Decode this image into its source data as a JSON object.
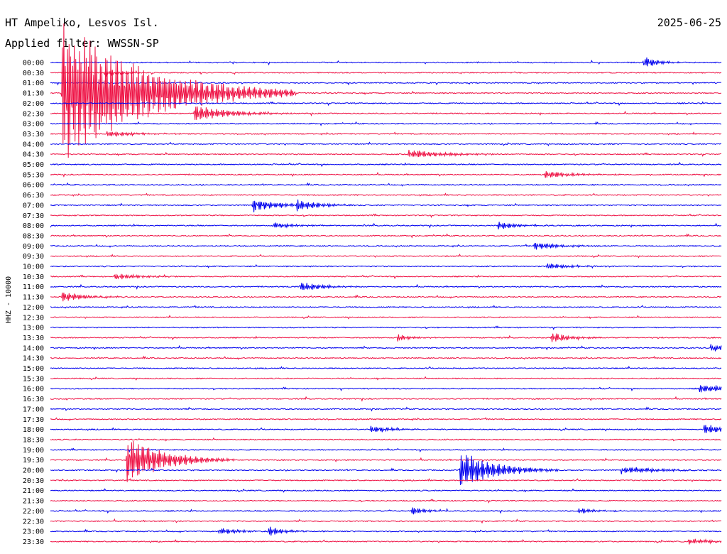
{
  "header": {
    "station": "HT Ampeliko, Lesvos Isl.",
    "date": "2025-06-25",
    "filter": "Applied filter: WWSSN-SP"
  },
  "chart_data": {
    "type": "line",
    "title": "HT Ampeliko, Lesvos Isl.",
    "subtitle": "Applied filter: WWSSN-SP",
    "ylabel": "HHZ - 10000",
    "colors": {
      "odd_hour": "#0000ee",
      "half_hour": "#ee1144"
    },
    "rows": [
      "00:00",
      "00:30",
      "01:00",
      "01:30",
      "02:00",
      "02:30",
      "03:00",
      "03:30",
      "04:00",
      "04:30",
      "05:00",
      "05:30",
      "06:00",
      "06:30",
      "07:00",
      "07:30",
      "08:00",
      "08:30",
      "09:00",
      "09:30",
      "10:00",
      "10:30",
      "11:00",
      "11:30",
      "12:00",
      "12:30",
      "13:00",
      "13:30",
      "14:00",
      "14:30",
      "15:00",
      "15:30",
      "16:00",
      "16:30",
      "17:00",
      "17:30",
      "18:00",
      "18:30",
      "19:00",
      "19:30",
      "20:00",
      "20:30",
      "21:00",
      "21:30",
      "22:00",
      "22:30",
      "23:00",
      "23:30"
    ],
    "events": [
      {
        "row": 0,
        "minute": 26.5,
        "amp": 10,
        "dur": 0.6
      },
      {
        "row": 1,
        "minute": 2.4,
        "amp": 7,
        "dur": 0.6
      },
      {
        "row": 3,
        "minute": 0.5,
        "amp": 110,
        "dur": 3.5
      },
      {
        "row": 5,
        "minute": 6.4,
        "amp": 14,
        "dur": 1.5
      },
      {
        "row": 7,
        "minute": 2.5,
        "amp": 5,
        "dur": 1.2
      },
      {
        "row": 9,
        "minute": 16.0,
        "amp": 7,
        "dur": 1.5
      },
      {
        "row": 11,
        "minute": 22.1,
        "amp": 6,
        "dur": 1.2
      },
      {
        "row": 14,
        "minute": 9.0,
        "amp": 10,
        "dur": 1.2
      },
      {
        "row": 14,
        "minute": 11.0,
        "amp": 8,
        "dur": 1.0
      },
      {
        "row": 16,
        "minute": 9.9,
        "amp": 5,
        "dur": 1.0
      },
      {
        "row": 16,
        "minute": 20.0,
        "amp": 7,
        "dur": 0.8
      },
      {
        "row": 18,
        "minute": 21.6,
        "amp": 6,
        "dur": 1.2
      },
      {
        "row": 20,
        "minute": 22.2,
        "amp": 5,
        "dur": 1.0
      },
      {
        "row": 21,
        "minute": 2.8,
        "amp": 6,
        "dur": 1.0
      },
      {
        "row": 22,
        "minute": 11.1,
        "amp": 8,
        "dur": 1.0
      },
      {
        "row": 23,
        "minute": 0.5,
        "amp": 9,
        "dur": 1.0
      },
      {
        "row": 27,
        "minute": 22.4,
        "amp": 9,
        "dur": 0.8
      },
      {
        "row": 27,
        "minute": 15.5,
        "amp": 6,
        "dur": 0.6
      },
      {
        "row": 28,
        "minute": 29.5,
        "amp": 6,
        "dur": 1.0
      },
      {
        "row": 32,
        "minute": 29.0,
        "amp": 8,
        "dur": 1.2
      },
      {
        "row": 36,
        "minute": 14.3,
        "amp": 6,
        "dur": 1.0
      },
      {
        "row": 36,
        "minute": 29.2,
        "amp": 9,
        "dur": 0.8
      },
      {
        "row": 39,
        "minute": 3.4,
        "amp": 38,
        "dur": 1.6
      },
      {
        "row": 40,
        "minute": 18.3,
        "amp": 30,
        "dur": 1.5
      },
      {
        "row": 40,
        "minute": 25.5,
        "amp": 6,
        "dur": 1.5
      },
      {
        "row": 44,
        "minute": 16.1,
        "amp": 7,
        "dur": 0.6
      },
      {
        "row": 44,
        "minute": 23.6,
        "amp": 5,
        "dur": 0.8
      },
      {
        "row": 46,
        "minute": 7.5,
        "amp": 6,
        "dur": 0.8
      },
      {
        "row": 46,
        "minute": 9.7,
        "amp": 9,
        "dur": 0.6
      },
      {
        "row": 47,
        "minute": 28.5,
        "amp": 5,
        "dur": 1.0
      }
    ]
  }
}
